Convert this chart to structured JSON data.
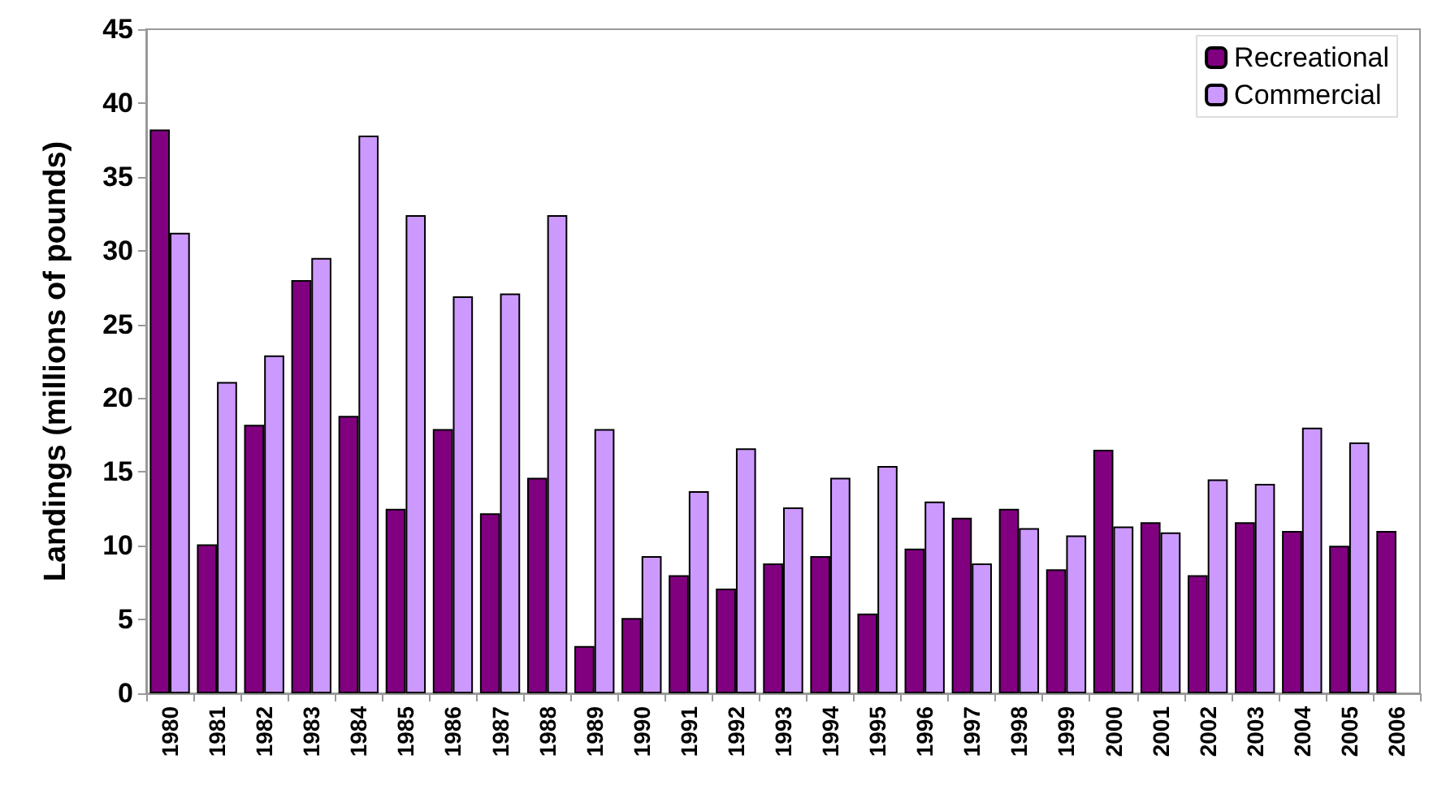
{
  "chart_data": {
    "type": "bar",
    "ylabel": "Landings (millions of pounds)",
    "categories": [
      "1980",
      "1981",
      "1982",
      "1983",
      "1984",
      "1985",
      "1986",
      "1987",
      "1988",
      "1989",
      "1990",
      "1991",
      "1992",
      "1993",
      "1994",
      "1995",
      "1996",
      "1997",
      "1998",
      "1999",
      "2000",
      "2001",
      "2002",
      "2003",
      "2004",
      "2005",
      "2006"
    ],
    "series": [
      {
        "name": "Recreational",
        "color": "#800080",
        "values": [
          38.2,
          10.1,
          18.2,
          28.0,
          18.8,
          12.5,
          17.9,
          12.2,
          14.6,
          3.2,
          5.1,
          8.0,
          7.1,
          8.8,
          9.3,
          5.4,
          9.8,
          11.9,
          12.5,
          8.4,
          16.5,
          11.6,
          8.0,
          11.6,
          11.0,
          10.0,
          11.0
        ]
      },
      {
        "name": "Commercial",
        "color": "#cc99ff",
        "values": [
          31.2,
          21.1,
          22.9,
          29.5,
          37.8,
          32.4,
          26.9,
          27.1,
          32.4,
          17.9,
          9.3,
          13.7,
          16.6,
          12.6,
          14.6,
          15.4,
          13.0,
          8.8,
          11.2,
          10.7,
          11.3,
          10.9,
          14.5,
          14.2,
          18.0,
          17.0,
          null
        ]
      }
    ],
    "ylim": [
      0,
      45
    ],
    "yticks": [
      0,
      5,
      10,
      15,
      20,
      25,
      30,
      35,
      40,
      45
    ],
    "grid": false,
    "legend": "top right"
  }
}
